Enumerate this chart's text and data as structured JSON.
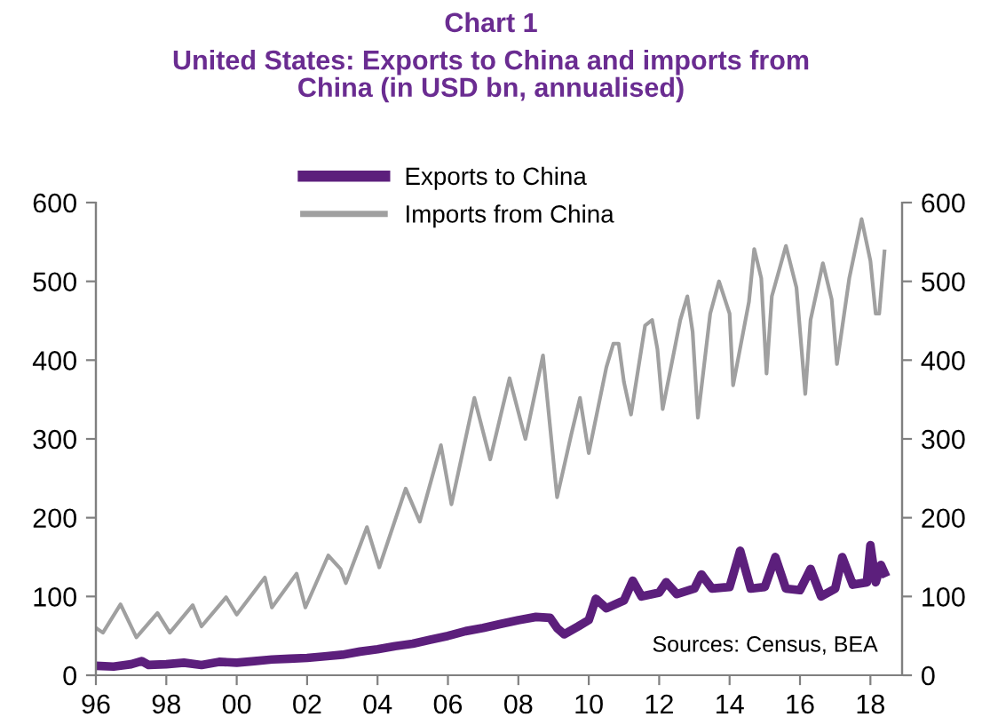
{
  "chart_data": {
    "type": "line",
    "title": "Chart 1",
    "subtitle": "United States: Exports to China and imports from\nChina (in USD bn, annualised)",
    "series": [
      {
        "name": "Exports to China",
        "color": "#5c1f7c",
        "x": [
          1996.0,
          1996.5,
          1997.0,
          1997.3,
          1997.5,
          1998.0,
          1998.5,
          1999.0,
          1999.5,
          2000.0,
          2000.5,
          2001.0,
          2001.5,
          2002.0,
          2002.5,
          2003.0,
          2003.5,
          2004.0,
          2004.5,
          2005.0,
          2005.5,
          2006.0,
          2006.5,
          2007.0,
          2007.5,
          2008.0,
          2008.5,
          2008.9,
          2009.1,
          2009.3,
          2009.7,
          2010.0,
          2010.2,
          2010.5,
          2011.0,
          2011.25,
          2011.5,
          2012.0,
          2012.2,
          2012.5,
          2013.0,
          2013.2,
          2013.5,
          2014.0,
          2014.3,
          2014.6,
          2015.0,
          2015.3,
          2015.6,
          2016.0,
          2016.3,
          2016.6,
          2017.0,
          2017.2,
          2017.5,
          2017.9,
          2018.0,
          2018.15,
          2018.3,
          2018.4
        ],
        "values": [
          12,
          11,
          14,
          18,
          13,
          14,
          16,
          13,
          17,
          16,
          18,
          20,
          21,
          22,
          24,
          26,
          30,
          33,
          37,
          40,
          45,
          50,
          56,
          60,
          65,
          70,
          74,
          73,
          60,
          52,
          62,
          70,
          97,
          85,
          95,
          120,
          100,
          105,
          118,
          103,
          110,
          128,
          110,
          112,
          158,
          110,
          112,
          150,
          110,
          108,
          135,
          100,
          110,
          150,
          115,
          118,
          165,
          118,
          140,
          130
        ]
      },
      {
        "name": "Imports from China",
        "color": "#a0a0a0",
        "x": [
          1996.0,
          1996.2,
          1996.7,
          1997.15,
          1997.75,
          1998.1,
          1998.75,
          1999.0,
          1999.7,
          2000.0,
          2000.8,
          2001.0,
          2001.7,
          2001.95,
          2002.6,
          2002.95,
          2003.1,
          2003.7,
          2004.05,
          2004.8,
          2005.2,
          2005.8,
          2006.1,
          2006.75,
          2007.2,
          2007.75,
          2008.2,
          2008.7,
          2009.1,
          2009.5,
          2009.75,
          2010.0,
          2010.5,
          2010.7,
          2010.85,
          2011.0,
          2011.2,
          2011.6,
          2011.8,
          2011.95,
          2012.1,
          2012.6,
          2012.8,
          2012.95,
          2013.1,
          2013.45,
          2013.7,
          2014.0,
          2014.1,
          2014.55,
          2014.7,
          2014.9,
          2015.05,
          2015.2,
          2015.6,
          2015.9,
          2016.15,
          2016.3,
          2016.65,
          2016.9,
          2017.05,
          2017.4,
          2017.75,
          2018.0,
          2018.15,
          2018.25,
          2018.4
        ],
        "values": [
          60,
          54,
          90,
          48,
          79,
          54,
          89,
          62,
          99,
          77,
          124,
          86,
          129,
          86,
          152,
          135,
          117,
          188,
          137,
          237,
          195,
          292,
          217,
          352,
          274,
          377,
          300,
          406,
          226,
          305,
          352,
          282,
          391,
          421,
          421,
          372,
          331,
          444,
          451,
          414,
          338,
          451,
          481,
          436,
          327,
          459,
          500,
          459,
          368,
          474,
          541,
          504,
          383,
          481,
          545,
          492,
          357,
          451,
          523,
          477,
          395,
          504,
          579,
          526,
          459,
          459,
          538
        ]
      }
    ],
    "xlim": [
      1996,
      2018.9
    ],
    "xticks": [
      {
        "value": 1996,
        "label": "96"
      },
      {
        "value": 1998,
        "label": "98"
      },
      {
        "value": 2000,
        "label": "00"
      },
      {
        "value": 2002,
        "label": "02"
      },
      {
        "value": 2004,
        "label": "04"
      },
      {
        "value": 2006,
        "label": "06"
      },
      {
        "value": 2008,
        "label": "08"
      },
      {
        "value": 2010,
        "label": "10"
      },
      {
        "value": 2012,
        "label": "12"
      },
      {
        "value": 2014,
        "label": "14"
      },
      {
        "value": 2016,
        "label": "16"
      },
      {
        "value": 2018,
        "label": "18"
      }
    ],
    "ylim": [
      0,
      600
    ],
    "yticks": [
      0,
      100,
      200,
      300,
      400,
      500,
      600
    ],
    "y2lim": [
      0,
      600
    ],
    "y2ticks": [
      0,
      100,
      200,
      300,
      400,
      500,
      600
    ],
    "annotations": [
      "Sources: Census, BEA"
    ],
    "legend": "top",
    "grid": false
  }
}
